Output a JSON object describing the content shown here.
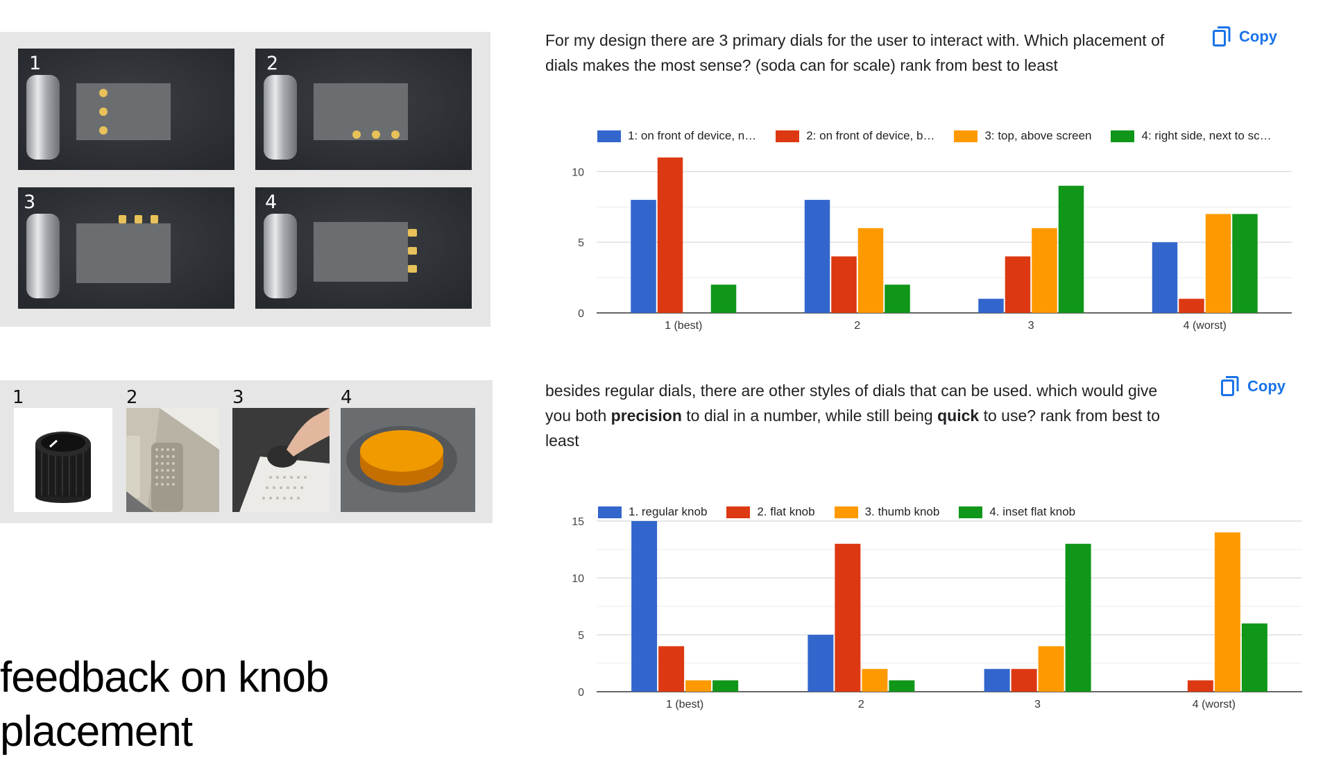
{
  "slide": {
    "title_line1": "feedback on knob",
    "title_line2": "placement"
  },
  "placement_images": {
    "labels": [
      "1",
      "2",
      "3",
      "4"
    ]
  },
  "knob_images": {
    "labels": [
      "1",
      "2",
      "3",
      "4"
    ]
  },
  "question1": {
    "text": "For my design there are 3 primary dials for the user to interact with. Which placement of dials makes the most sense? (soda can for scale)  rank from best to least",
    "copy_label": "Copy"
  },
  "question2": {
    "part1": "besides regular dials, there are other styles of dials that can be used. which would give you both ",
    "bold1": "precision",
    "part2": " to dial in a number, while still being ",
    "bold2": "quick",
    "part3": " to use? rank from best to least",
    "copy_label": "Copy"
  },
  "colors": {
    "blue": "#3366cc",
    "red": "#dc3912",
    "orange": "#ff9900",
    "green": "#109618",
    "copy": "#1a73e8"
  },
  "chart_data": [
    {
      "type": "bar",
      "categories": [
        "1 (best)",
        "2",
        "3",
        "4 (worst)"
      ],
      "series": [
        {
          "name": "1: on front of device, n…",
          "values": [
            8,
            8,
            1,
            5
          ]
        },
        {
          "name": "2: on front of device, b…",
          "values": [
            11,
            4,
            4,
            1
          ]
        },
        {
          "name": "3: top, above screen",
          "values": [
            0,
            6,
            6,
            7
          ]
        },
        {
          "name": "4: right side, next to sc…",
          "values": [
            2,
            2,
            9,
            7
          ]
        }
      ],
      "yticks": [
        0,
        5,
        10
      ],
      "ylim": [
        0,
        11
      ],
      "legend": "top",
      "grid": true
    },
    {
      "type": "bar",
      "categories": [
        "1 (best)",
        "2",
        "3",
        "4 (worst)"
      ],
      "series": [
        {
          "name": "1. regular knob",
          "values": [
            15,
            5,
            2,
            0
          ]
        },
        {
          "name": "2. flat knob",
          "values": [
            4,
            13,
            2,
            1
          ]
        },
        {
          "name": "3. thumb knob",
          "values": [
            1,
            2,
            4,
            14
          ]
        },
        {
          "name": "4. inset flat knob",
          "values": [
            1,
            1,
            13,
            6
          ]
        }
      ],
      "yticks": [
        0,
        5,
        10,
        15
      ],
      "ylim": [
        0,
        15
      ],
      "legend": "top",
      "grid": true
    }
  ]
}
